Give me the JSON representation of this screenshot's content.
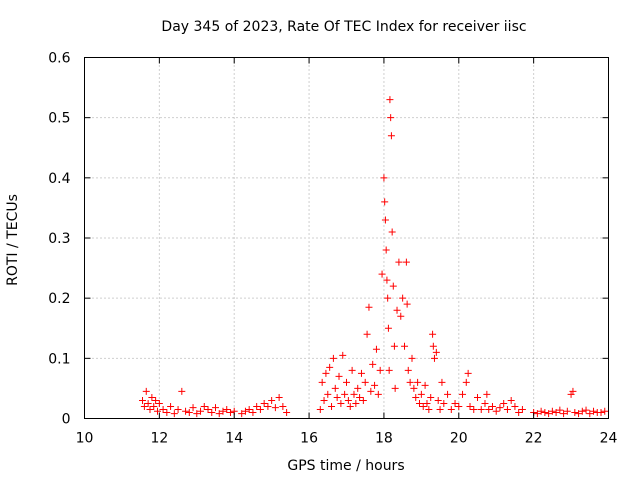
{
  "chart_data": {
    "type": "scatter",
    "title": "Day 345 of 2023, Rate Of TEC Index for receiver iisc",
    "xlabel": "GPS time / hours",
    "ylabel": "ROTI / TECUs",
    "xlim": [
      10,
      24
    ],
    "ylim": [
      0,
      0.6
    ],
    "xticks": [
      10,
      12,
      14,
      16,
      18,
      20,
      22,
      24
    ],
    "yticks": [
      0,
      0.1,
      0.2,
      0.3,
      0.4,
      0.5,
      0.6
    ],
    "xtick_labels": [
      "10",
      "12",
      "14",
      "16",
      "18",
      "20",
      "22",
      "24"
    ],
    "ytick_labels": [
      "0",
      "0.1",
      "0.2",
      "0.3",
      "0.4",
      "0.5",
      "0.6"
    ],
    "grid": true,
    "marker": "+",
    "color": "#ff0000",
    "series": [
      {
        "name": "ROTI",
        "points": [
          [
            11.55,
            0.03
          ],
          [
            11.6,
            0.02
          ],
          [
            11.65,
            0.045
          ],
          [
            11.7,
            0.025
          ],
          [
            11.75,
            0.015
          ],
          [
            11.8,
            0.035
          ],
          [
            11.85,
            0.02
          ],
          [
            11.9,
            0.03
          ],
          [
            11.95,
            0.012
          ],
          [
            12.0,
            0.025
          ],
          [
            12.1,
            0.015
          ],
          [
            12.2,
            0.01
          ],
          [
            12.3,
            0.02
          ],
          [
            12.4,
            0.008
          ],
          [
            12.5,
            0.015
          ],
          [
            12.6,
            0.045
          ],
          [
            12.7,
            0.012
          ],
          [
            12.8,
            0.01
          ],
          [
            12.9,
            0.018
          ],
          [
            13.0,
            0.008
          ],
          [
            13.1,
            0.012
          ],
          [
            13.2,
            0.02
          ],
          [
            13.3,
            0.015
          ],
          [
            13.4,
            0.01
          ],
          [
            13.5,
            0.018
          ],
          [
            13.6,
            0.008
          ],
          [
            13.7,
            0.012
          ],
          [
            13.8,
            0.015
          ],
          [
            13.9,
            0.01
          ],
          [
            14.0,
            0.012
          ],
          [
            14.2,
            0.008
          ],
          [
            14.3,
            0.012
          ],
          [
            14.4,
            0.015
          ],
          [
            14.5,
            0.01
          ],
          [
            14.6,
            0.02
          ],
          [
            14.7,
            0.015
          ],
          [
            14.8,
            0.025
          ],
          [
            14.9,
            0.02
          ],
          [
            15.0,
            0.03
          ],
          [
            15.1,
            0.018
          ],
          [
            15.2,
            0.035
          ],
          [
            15.3,
            0.02
          ],
          [
            15.4,
            0.01
          ],
          [
            16.3,
            0.015
          ],
          [
            16.35,
            0.06
          ],
          [
            16.4,
            0.03
          ],
          [
            16.45,
            0.075
          ],
          [
            16.5,
            0.04
          ],
          [
            16.55,
            0.085
          ],
          [
            16.6,
            0.02
          ],
          [
            16.65,
            0.1
          ],
          [
            16.7,
            0.05
          ],
          [
            16.75,
            0.035
          ],
          [
            16.8,
            0.07
          ],
          [
            16.85,
            0.025
          ],
          [
            16.9,
            0.105
          ],
          [
            16.95,
            0.04
          ],
          [
            17.0,
            0.06
          ],
          [
            17.05,
            0.03
          ],
          [
            17.1,
            0.02
          ],
          [
            17.15,
            0.08
          ],
          [
            17.2,
            0.04
          ],
          [
            17.25,
            0.025
          ],
          [
            17.3,
            0.05
          ],
          [
            17.35,
            0.035
          ],
          [
            17.4,
            0.075
          ],
          [
            17.45,
            0.03
          ],
          [
            17.5,
            0.06
          ],
          [
            17.55,
            0.14
          ],
          [
            17.6,
            0.185
          ],
          [
            17.65,
            0.045
          ],
          [
            17.7,
            0.09
          ],
          [
            17.75,
            0.055
          ],
          [
            17.8,
            0.115
          ],
          [
            17.85,
            0.04
          ],
          [
            17.9,
            0.08
          ],
          [
            17.95,
            0.24
          ],
          [
            18.0,
            0.4
          ],
          [
            18.02,
            0.36
          ],
          [
            18.04,
            0.33
          ],
          [
            18.06,
            0.28
          ],
          [
            18.08,
            0.23
          ],
          [
            18.1,
            0.2
          ],
          [
            18.12,
            0.15
          ],
          [
            18.14,
            0.08
          ],
          [
            18.16,
            0.53
          ],
          [
            18.18,
            0.5
          ],
          [
            18.2,
            0.47
          ],
          [
            18.22,
            0.31
          ],
          [
            18.25,
            0.22
          ],
          [
            18.28,
            0.12
          ],
          [
            18.3,
            0.05
          ],
          [
            18.35,
            0.18
          ],
          [
            18.4,
            0.26
          ],
          [
            18.45,
            0.17
          ],
          [
            18.5,
            0.2
          ],
          [
            18.55,
            0.12
          ],
          [
            18.6,
            0.26
          ],
          [
            18.62,
            0.19
          ],
          [
            18.65,
            0.08
          ],
          [
            18.7,
            0.06
          ],
          [
            18.75,
            0.1
          ],
          [
            18.8,
            0.05
          ],
          [
            18.85,
            0.035
          ],
          [
            18.9,
            0.06
          ],
          [
            18.95,
            0.025
          ],
          [
            19.0,
            0.04
          ],
          [
            19.05,
            0.02
          ],
          [
            19.1,
            0.055
          ],
          [
            19.15,
            0.025
          ],
          [
            19.2,
            0.015
          ],
          [
            19.25,
            0.035
          ],
          [
            19.3,
            0.14
          ],
          [
            19.32,
            0.12
          ],
          [
            19.35,
            0.1
          ],
          [
            19.4,
            0.11
          ],
          [
            19.45,
            0.03
          ],
          [
            19.5,
            0.015
          ],
          [
            19.55,
            0.06
          ],
          [
            19.6,
            0.025
          ],
          [
            19.7,
            0.04
          ],
          [
            19.8,
            0.015
          ],
          [
            19.9,
            0.025
          ],
          [
            20.0,
            0.02
          ],
          [
            20.1,
            0.04
          ],
          [
            20.2,
            0.06
          ],
          [
            20.25,
            0.075
          ],
          [
            20.3,
            0.02
          ],
          [
            20.4,
            0.015
          ],
          [
            20.5,
            0.035
          ],
          [
            20.6,
            0.015
          ],
          [
            20.7,
            0.025
          ],
          [
            20.75,
            0.04
          ],
          [
            20.8,
            0.015
          ],
          [
            20.9,
            0.02
          ],
          [
            21.0,
            0.012
          ],
          [
            21.1,
            0.018
          ],
          [
            21.2,
            0.025
          ],
          [
            21.3,
            0.015
          ],
          [
            21.4,
            0.03
          ],
          [
            21.5,
            0.02
          ],
          [
            21.6,
            0.01
          ],
          [
            21.7,
            0.015
          ],
          [
            22.0,
            0.01
          ],
          [
            22.1,
            0.008
          ],
          [
            22.2,
            0.012
          ],
          [
            22.3,
            0.01
          ],
          [
            22.4,
            0.008
          ],
          [
            22.5,
            0.012
          ],
          [
            22.6,
            0.01
          ],
          [
            22.7,
            0.014
          ],
          [
            22.8,
            0.008
          ],
          [
            22.9,
            0.012
          ],
          [
            23.0,
            0.04
          ],
          [
            23.05,
            0.045
          ],
          [
            23.1,
            0.01
          ],
          [
            23.2,
            0.008
          ],
          [
            23.3,
            0.012
          ],
          [
            23.4,
            0.014
          ],
          [
            23.5,
            0.008
          ],
          [
            23.6,
            0.012
          ],
          [
            23.7,
            0.01
          ],
          [
            23.8,
            0.01
          ],
          [
            23.9,
            0.012
          ]
        ]
      }
    ]
  }
}
